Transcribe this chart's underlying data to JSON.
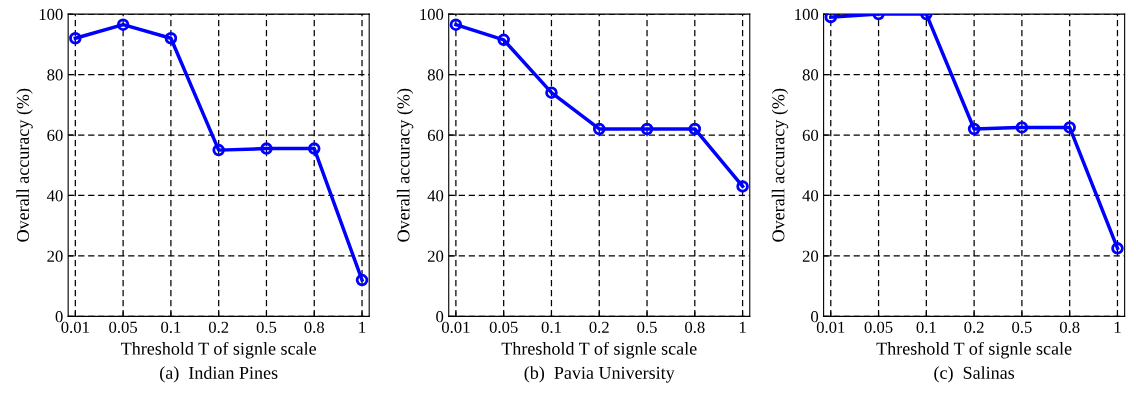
{
  "chart_data": [
    {
      "type": "line",
      "xlabel": "Threshold T of signle scale",
      "ylabel": "Overall accuracy (%)",
      "categories": [
        "0.01",
        "0.05",
        "0.1",
        "0.2",
        "0.5",
        "0.8",
        "1"
      ],
      "series": [
        {
          "color": "#0000ff",
          "values": [
            92,
            96.5,
            92,
            55,
            55.5,
            55.5,
            12
          ]
        }
      ],
      "ylim": [
        0,
        100
      ],
      "yticks": [
        0,
        20,
        40,
        60,
        80,
        100
      ],
      "grid": true,
      "marker": "circle",
      "line_style": "solid",
      "annotations": [
        "(a)  Indian Pines"
      ]
    },
    {
      "type": "line",
      "xlabel": "Threshold T of signle scale",
      "ylabel": "Overall accuracy (%)",
      "categories": [
        "0.01",
        "0.05",
        "0.1",
        "0.2",
        "0.5",
        "0.8",
        "1"
      ],
      "series": [
        {
          "color": "#0000ff",
          "values": [
            96.5,
            91.5,
            74,
            62,
            62,
            62,
            43
          ]
        }
      ],
      "ylim": [
        0,
        100
      ],
      "yticks": [
        0,
        20,
        40,
        60,
        80,
        100
      ],
      "grid": true,
      "marker": "circle",
      "line_style": "solid",
      "annotations": [
        "(b)  Pavia University"
      ]
    },
    {
      "type": "line",
      "xlabel": "Threshold T of signle scale",
      "ylabel": "Overall accuracy (%)",
      "categories": [
        "0.01",
        "0.05",
        "0.1",
        "0.2",
        "0.5",
        "0.8",
        "1"
      ],
      "series": [
        {
          "color": "#0000ff",
          "values": [
            99,
            100,
            100,
            62,
            62.5,
            62.5,
            22.5
          ]
        }
      ],
      "ylim": [
        0,
        100
      ],
      "yticks": [
        0,
        20,
        40,
        60,
        80,
        100
      ],
      "grid": true,
      "marker": "circle",
      "line_style": "solid",
      "annotations": [
        "(c)  Salinas"
      ]
    }
  ]
}
